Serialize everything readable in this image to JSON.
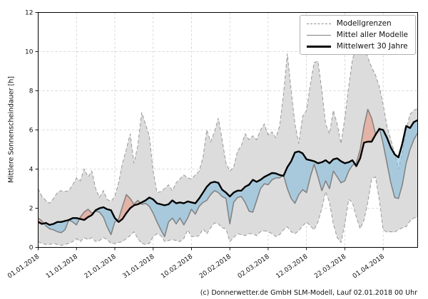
{
  "chart_data": {
    "type": "line",
    "title": "",
    "ylabel": "Mittlere Sonnenscheindauer [h]",
    "xlabel": "",
    "ylim": [
      0,
      12
    ],
    "y_ticks": [
      0,
      2,
      4,
      6,
      8,
      10,
      12
    ],
    "xlim_days": [
      0,
      99
    ],
    "x_tick_days": [
      0,
      10,
      20,
      30,
      40,
      50,
      60,
      70,
      80,
      90
    ],
    "x_tick_labels": [
      "01.01.2018",
      "11.01.2018",
      "21.01.2018",
      "31.01.2018",
      "10.02.2018",
      "20.02.2018",
      "02.03.2018",
      "12.03.2018",
      "22.03.2018",
      "01.04.2018"
    ],
    "grid": "dashed",
    "legend": {
      "position": "upper right",
      "entries": [
        "Modellgrenzen",
        "Mittel aller Modelle",
        "Mittelwert 30 Jahre"
      ]
    },
    "colors": {
      "envelope_fill": "#dcdcdc",
      "envelope_edge": "#999999",
      "model_mean_line": "#808080",
      "mean30_line": "#000000",
      "above_normal_fill": "#e8927a",
      "below_normal_fill": "#85bcdc",
      "grid": "#cccccc"
    },
    "series": [
      {
        "name": "Modellgrenzen (oben)",
        "role": "upper_bound",
        "style": "dashed-gray",
        "values": [
          3.0,
          2.6,
          2.4,
          2.25,
          2.5,
          2.8,
          2.9,
          2.85,
          2.9,
          3.2,
          3.55,
          3.4,
          4.0,
          3.6,
          3.9,
          3.0,
          2.55,
          2.9,
          2.45,
          2.35,
          2.6,
          3.3,
          4.3,
          5.0,
          5.8,
          4.3,
          5.2,
          6.9,
          6.3,
          5.7,
          3.9,
          2.8,
          2.85,
          3.0,
          3.2,
          2.9,
          3.3,
          3.5,
          3.7,
          3.55,
          3.5,
          3.7,
          3.9,
          4.6,
          6.0,
          5.4,
          5.9,
          6.6,
          5.5,
          4.3,
          3.9,
          4.1,
          4.9,
          5.2,
          5.8,
          5.5,
          5.7,
          5.5,
          6.0,
          6.3,
          5.75,
          5.9,
          5.6,
          6.2,
          7.8,
          9.9,
          8.0,
          6.3,
          5.3,
          6.7,
          7.0,
          8.3,
          9.45,
          9.5,
          8.0,
          6.3,
          5.8,
          7.0,
          6.3,
          5.3,
          6.6,
          8.2,
          9.6,
          10.2,
          10.4,
          10.3,
          9.7,
          9.2,
          8.8,
          8.2,
          7.3,
          6.2,
          5.5,
          4.8,
          4.0,
          4.8,
          6.0,
          6.8,
          7.0,
          7.1
        ]
      },
      {
        "name": "Modellgrenzen (unten)",
        "role": "lower_bound",
        "style": "dashed-gray",
        "values": [
          0.3,
          0.2,
          0.15,
          0.15,
          0.2,
          0.15,
          0.1,
          0.15,
          0.2,
          0.3,
          0.45,
          0.3,
          0.5,
          0.4,
          0.5,
          0.3,
          0.35,
          0.5,
          0.4,
          0.2,
          0.2,
          0.25,
          0.3,
          0.45,
          0.6,
          0.8,
          0.45,
          0.2,
          0.15,
          0.2,
          0.55,
          0.7,
          0.6,
          0.3,
          0.35,
          0.4,
          0.35,
          0.3,
          0.45,
          0.9,
          0.55,
          0.55,
          0.6,
          0.95,
          0.7,
          1.0,
          1.25,
          1.2,
          1.0,
          0.95,
          0.3,
          0.5,
          0.7,
          0.65,
          0.6,
          0.7,
          0.7,
          0.6,
          0.8,
          0.85,
          0.8,
          0.7,
          0.55,
          0.65,
          0.9,
          1.05,
          0.8,
          0.7,
          0.85,
          1.1,
          1.3,
          1.1,
          0.9,
          1.3,
          2.0,
          2.85,
          2.3,
          1.2,
          0.5,
          0.25,
          1.2,
          2.45,
          2.3,
          1.55,
          0.95,
          1.4,
          2.3,
          3.5,
          3.6,
          2.4,
          0.9,
          0.78,
          0.8,
          0.78,
          0.9,
          1.0,
          1.05,
          1.35,
          1.5,
          1.55
        ]
      },
      {
        "name": "Mittel aller Modelle",
        "role": "model_mean",
        "style": "solid-gray",
        "values": [
          1.5,
          1.35,
          1.1,
          0.95,
          0.9,
          0.8,
          0.75,
          0.9,
          1.4,
          1.3,
          1.15,
          1.55,
          1.8,
          1.95,
          1.75,
          1.85,
          1.8,
          1.55,
          1.05,
          0.65,
          1.3,
          1.45,
          2.1,
          2.7,
          2.5,
          2.2,
          2.4,
          2.2,
          2.25,
          2.1,
          1.75,
          1.3,
          0.9,
          0.55,
          1.3,
          1.5,
          1.2,
          1.5,
          1.15,
          1.5,
          1.95,
          1.7,
          2.1,
          2.3,
          2.4,
          2.7,
          2.9,
          2.8,
          2.6,
          2.5,
          1.2,
          2.3,
          2.55,
          2.6,
          2.3,
          1.85,
          1.8,
          2.4,
          3.0,
          3.25,
          3.2,
          3.45,
          3.55,
          3.55,
          3.7,
          3.0,
          2.5,
          2.25,
          2.7,
          2.95,
          2.8,
          3.6,
          4.25,
          3.6,
          2.9,
          3.4,
          3.0,
          3.9,
          3.6,
          3.3,
          3.4,
          3.9,
          4.2,
          4.3,
          5.0,
          6.2,
          7.05,
          6.6,
          5.8,
          6.1,
          5.3,
          4.3,
          3.3,
          2.55,
          2.5,
          3.2,
          4.3,
          5.0,
          5.5,
          5.85
        ]
      },
      {
        "name": "Mittelwert 30 Jahre",
        "role": "climate_mean_30y",
        "style": "solid-black-thick",
        "values": [
          1.3,
          1.2,
          1.25,
          1.15,
          1.2,
          1.3,
          1.3,
          1.35,
          1.4,
          1.5,
          1.5,
          1.45,
          1.4,
          1.55,
          1.65,
          1.9,
          2.0,
          2.05,
          1.95,
          1.9,
          1.5,
          1.3,
          1.45,
          1.75,
          2.0,
          2.15,
          2.2,
          2.3,
          2.4,
          2.55,
          2.45,
          2.25,
          2.2,
          2.15,
          2.2,
          2.4,
          2.25,
          2.3,
          2.25,
          2.35,
          2.3,
          2.25,
          2.5,
          2.8,
          3.1,
          3.3,
          3.35,
          3.3,
          2.95,
          2.8,
          2.6,
          2.8,
          2.9,
          2.9,
          3.1,
          3.2,
          3.45,
          3.35,
          3.45,
          3.6,
          3.7,
          3.8,
          3.78,
          3.7,
          3.65,
          4.1,
          4.4,
          4.85,
          4.9,
          4.8,
          4.5,
          4.45,
          4.4,
          4.3,
          4.35,
          4.45,
          4.3,
          4.5,
          4.55,
          4.4,
          4.3,
          4.35,
          4.45,
          4.15,
          4.55,
          5.35,
          5.4,
          5.4,
          5.75,
          6.05,
          6.0,
          5.6,
          5.1,
          4.75,
          4.6,
          5.3,
          6.2,
          6.1,
          6.4,
          6.5
        ]
      }
    ],
    "footer": "(c) Donnerwetter.de GmbH SLM-Modell, Lauf 02.01.2018 00 Uhr"
  }
}
